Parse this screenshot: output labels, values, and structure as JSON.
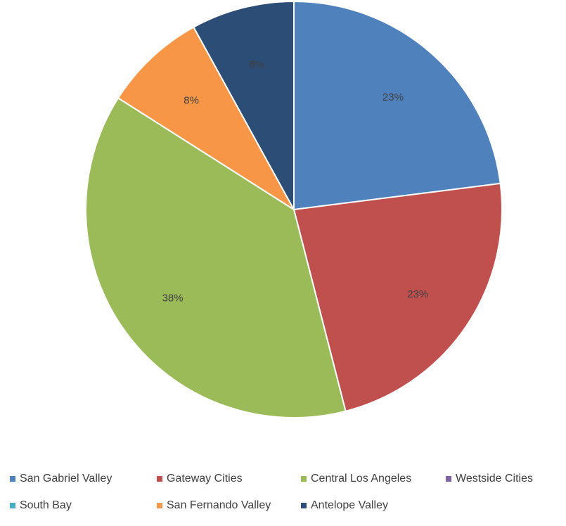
{
  "chart_data": {
    "type": "pie",
    "categories": [
      "San Gabriel Valley",
      "Gateway Cities",
      "Central Los Angeles",
      "Westside Cities",
      "South Bay",
      "San Fernando Valley",
      "Antelope Valley"
    ],
    "values": [
      23,
      23,
      38,
      0,
      0,
      8,
      8
    ],
    "data_labels": [
      "23%",
      "23%",
      "38%",
      "",
      "",
      "8%",
      "8%"
    ],
    "colors": [
      "#4F81BD",
      "#C0504D",
      "#9BBB59",
      "#8064A2",
      "#4BACC6",
      "#F79646",
      "#2C4D75"
    ],
    "title": "",
    "legend": {
      "position": "bottom",
      "rows": [
        [
          "San Gabriel Valley",
          "Gateway Cities",
          "Central Los Angeles",
          "Westside Cities"
        ],
        [
          "South Bay",
          "San Fernando Valley",
          "Antelope Valley"
        ]
      ]
    }
  }
}
